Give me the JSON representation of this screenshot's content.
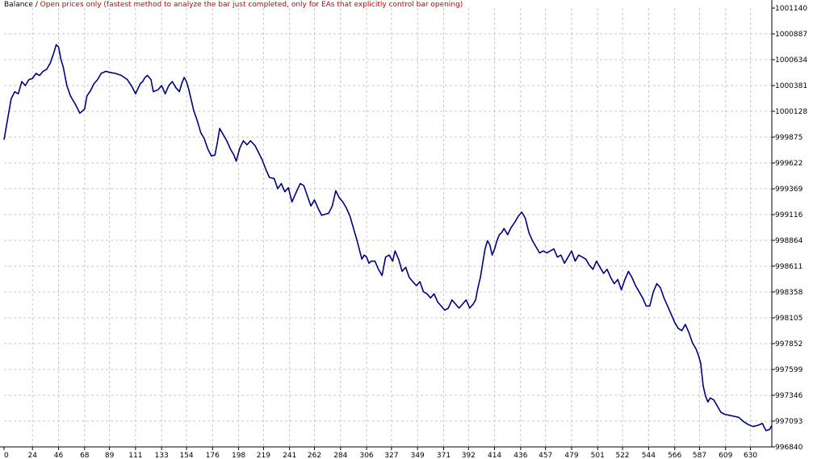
{
  "header": {
    "title": "Balance",
    "separator": " / ",
    "subtitle": "Open prices only (fastest method to analyze the bar just completed, only for EAs that explicitly control bar opening)"
  },
  "colors": {
    "line": "#000080",
    "grid": "#c8c8c8",
    "axis": "#000000",
    "subtitle": "#cc0000",
    "background": "#ffffff"
  },
  "chart_data": {
    "type": "line",
    "title": "Balance",
    "subtitle": "Open prices only (fastest method to analyze the bar just completed, only for EAs that explicitly control bar opening)",
    "xlabel": "",
    "ylabel": "",
    "grid": true,
    "legend": "none",
    "xlim": [
      0,
      648
    ],
    "ylim": [
      996840,
      1001140
    ],
    "x_ticks": [
      "0",
      "24",
      "46",
      "68",
      "89",
      "111",
      "133",
      "154",
      "176",
      "198",
      "219",
      "241",
      "262",
      "284",
      "306",
      "327",
      "349",
      "371",
      "392",
      "414",
      "436",
      "457",
      "479",
      "501",
      "522",
      "544",
      "566",
      "587",
      "609",
      "630"
    ],
    "x_tick_values": [
      0,
      24,
      46,
      68,
      89,
      111,
      133,
      154,
      176,
      198,
      219,
      241,
      262,
      284,
      306,
      327,
      349,
      371,
      392,
      414,
      436,
      457,
      479,
      501,
      522,
      544,
      566,
      587,
      609,
      630
    ],
    "y_ticks": [
      "1001140",
      "1000887",
      "1000634",
      "1000381",
      "1000128",
      "999875",
      "999622",
      "999369",
      "999116",
      "998864",
      "998611",
      "998358",
      "998105",
      "997852",
      "997599",
      "997346",
      "997093",
      "996840"
    ],
    "y_tick_values": [
      1001140,
      1000887,
      1000634,
      1000381,
      1000128,
      999875,
      999622,
      999369,
      999116,
      998864,
      998611,
      998358,
      998105,
      997852,
      997599,
      997346,
      997093,
      996840
    ],
    "series": [
      {
        "x": [
          0,
          3,
          6,
          9,
          12,
          15,
          18,
          21,
          24,
          27,
          30,
          33,
          36,
          39,
          42,
          44,
          46,
          48,
          50,
          53,
          56,
          60,
          64,
          68,
          70,
          73,
          76,
          79,
          82,
          86,
          89,
          94,
          99,
          104,
          108,
          111,
          113,
          115,
          117,
          119,
          121,
          124,
          126,
          130,
          133,
          136,
          139,
          142,
          145,
          148,
          150,
          152,
          154,
          156,
          158,
          160,
          163,
          166,
          169,
          172,
          175,
          178,
          180,
          182,
          185,
          188,
          191,
          194,
          196,
          199,
          202,
          205,
          208,
          212,
          215,
          218,
          221,
          224,
          228,
          231,
          234,
          237,
          240,
          243,
          246,
          250,
          253,
          256,
          259,
          262,
          265,
          268,
          271,
          274,
          277,
          280,
          283,
          286,
          289,
          292,
          295,
          298,
          302,
          304,
          306,
          308,
          310,
          313,
          316,
          319,
          322,
          325,
          328,
          330,
          333,
          336,
          339,
          342,
          345,
          348,
          351,
          354,
          357,
          360,
          363,
          366,
          369,
          372,
          375,
          378,
          381,
          384,
          387,
          390,
          393,
          396,
          398,
          400,
          402,
          404,
          406,
          408,
          410,
          412,
          414,
          416,
          418,
          420,
          422,
          425,
          428,
          431,
          434,
          437,
          440,
          443,
          446,
          449,
          452,
          455,
          458,
          461,
          464,
          467,
          470,
          473,
          476,
          479,
          482,
          485,
          488,
          491,
          494,
          497,
          500,
          503,
          506,
          509,
          512,
          515,
          518,
          521,
          524,
          527,
          530,
          533,
          536,
          539,
          542,
          545,
          548,
          551,
          554,
          557,
          560,
          563,
          566,
          569,
          572,
          575,
          578,
          581,
          584,
          586,
          588,
          590,
          592,
          594,
          596,
          599,
          602,
          605,
          608,
          612,
          616,
          620,
          624,
          628,
          632,
          636,
          640,
          643,
          646,
          648
        ],
        "values": [
          999850,
          1000050,
          1000250,
          1000320,
          1000300,
          1000420,
          1000380,
          1000440,
          1000450,
          1000500,
          1000480,
          1000520,
          1000540,
          1000600,
          1000700,
          1000780,
          1000760,
          1000640,
          1000560,
          1000380,
          1000280,
          1000200,
          1000110,
          1000150,
          1000280,
          1000330,
          1000400,
          1000440,
          1000500,
          1000520,
          1000510,
          1000500,
          1000480,
          1000440,
          1000370,
          1000300,
          1000350,
          1000400,
          1000420,
          1000460,
          1000480,
          1000440,
          1000320,
          1000340,
          1000380,
          1000300,
          1000380,
          1000420,
          1000360,
          1000320,
          1000400,
          1000460,
          1000420,
          1000340,
          1000240,
          1000140,
          1000040,
          999920,
          999860,
          999760,
          999690,
          999700,
          999820,
          999960,
          999900,
          999840,
          999760,
          999700,
          999640,
          999770,
          999840,
          999800,
          999840,
          999790,
          999720,
          999650,
          999560,
          999480,
          999470,
          999370,
          999420,
          999340,
          999380,
          999240,
          999320,
          999420,
          999400,
          999300,
          999200,
          999260,
          999180,
          999110,
          999120,
          999130,
          999200,
          999350,
          999280,
          999240,
          999180,
          999100,
          998980,
          998860,
          998680,
          998720,
          998700,
          998640,
          998660,
          998660,
          998580,
          998520,
          998700,
          998720,
          998660,
          998760,
          998680,
          998560,
          998600,
          998500,
          998460,
          998420,
          998460,
          998360,
          998340,
          998300,
          998340,
          998260,
          998220,
          998180,
          998200,
          998280,
          998240,
          998200,
          998240,
          998280,
          998200,
          998240,
          998280,
          998400,
          998500,
          998640,
          998780,
          998860,
          998820,
          998720,
          998780,
          998860,
          998920,
          998940,
          998980,
          998920,
          998990,
          999040,
          999100,
          999140,
          999080,
          998940,
          998860,
          998800,
          998740,
          998760,
          998740,
          998760,
          998780,
          998700,
          998720,
          998640,
          998700,
          998760,
          998660,
          998720,
          998700,
          998680,
          998620,
          998580,
          998660,
          998600,
          998540,
          998580,
          998500,
          998440,
          998480,
          998380,
          998480,
          998560,
          998500,
          998420,
          998360,
          998300,
          998220,
          998220,
          998360,
          998440,
          998400,
          998300,
          998220,
          998140,
          998060,
          998000,
          997980,
          998040,
          997960,
          997860,
          997800,
          997740,
          997660,
          997440,
          997340,
          997280,
          997320,
          997300,
          997240,
          997180,
          997160,
          997150,
          997140,
          997130,
          997090,
          997060,
          997040,
          997050,
          997070,
          997000,
          997010,
          997050
        ]
      }
    ]
  }
}
